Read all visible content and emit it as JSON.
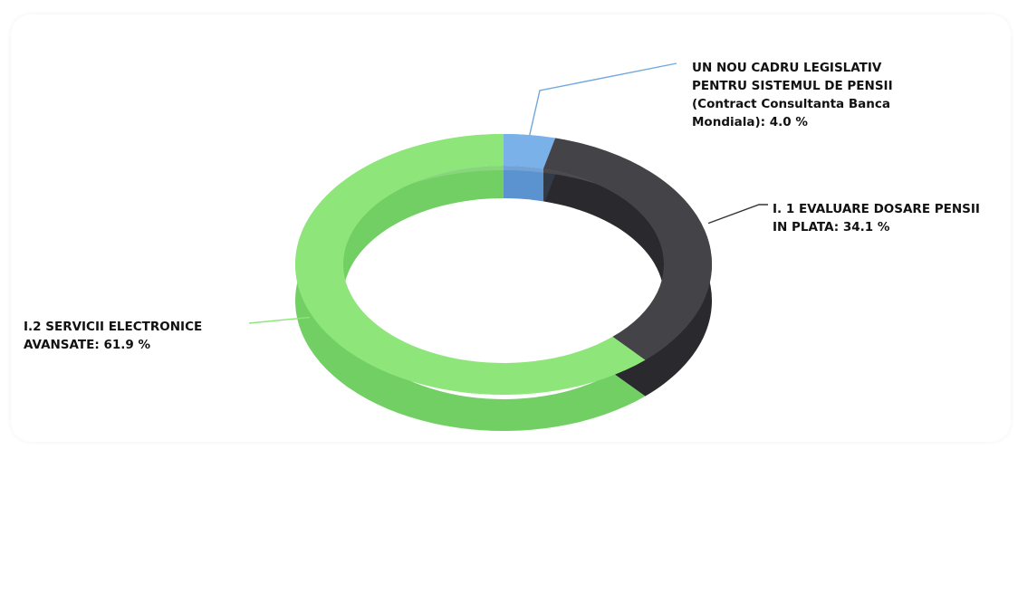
{
  "chart_data": {
    "type": "pie",
    "variant": "3d-donut",
    "title": "",
    "slices": [
      {
        "name": "UN NOU CADRU LEGISLATIV PENTRU SISTEMUL DE PENSII (Contract Consultanta Banca Mondiala)",
        "value": 4.0,
        "color": "#7ab1e8",
        "side_color": "#5a93cf",
        "label_lines": [
          " UN NOU CADRU LEGISLATIV",
          "PENTRU SISTEMUL DE PENSII",
          "(Contract Consultanta Banca",
          "Mondiala): 4.0 %"
        ]
      },
      {
        "name": "I. 1 EVALUARE DOSARE PENSII IN PLATA",
        "value": 34.1,
        "color": "#444448",
        "side_color": "#2a2a2e",
        "label_lines": [
          "I. 1 EVALUARE DOSARE PENSII",
          "IN PLATA: 34.1 %"
        ]
      },
      {
        "name": "I.2 SERVICII ELECTRONICE AVANSATE",
        "value": 61.9,
        "color": "#8ee57a",
        "side_color": "#72cf64",
        "label_lines": [
          "I.2 SERVICII ELECTRONICE",
          "AVANSATE: 61.9 %"
        ]
      }
    ],
    "unit": "%",
    "legend": "none",
    "reflection": true
  }
}
